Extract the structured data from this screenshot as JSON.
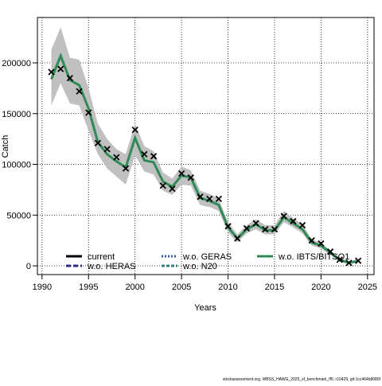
{
  "chart_data": {
    "type": "line",
    "xlabel": "Years",
    "ylabel": "Catch",
    "footer": "stockassessment.org, WBSS_HAWG_2025_sf_benchmark_ff5, r10429, git:1cc464b8086f",
    "x": [
      1991,
      1992,
      1993,
      1994,
      1995,
      1996,
      1997,
      1998,
      1999,
      2000,
      2001,
      2002,
      2003,
      2004,
      2005,
      2006,
      2007,
      2008,
      2009,
      2010,
      2011,
      2012,
      2013,
      2014,
      2015,
      2016,
      2017,
      2018,
      2019,
      2020,
      2021,
      2022,
      2023,
      2024
    ],
    "xlim": [
      1989.5,
      2025.7
    ],
    "xticks": [
      1990,
      1995,
      2000,
      2005,
      2010,
      2015,
      2020,
      2025
    ],
    "ylim": [
      -8600,
      244700
    ],
    "yticks": [
      0,
      50000,
      100000,
      150000,
      200000
    ],
    "grid": true,
    "legend": "bottom",
    "band": {
      "color": "#c0c0c0",
      "low": [
        158000,
        180000,
        160000,
        158000,
        133000,
        110000,
        96000,
        88000,
        80000,
        109000,
        93000,
        90000,
        74000,
        70000,
        80000,
        79000,
        60000,
        58000,
        54000,
        33000,
        23000,
        32000,
        36000,
        31000,
        31000,
        43000,
        38000,
        32000,
        20000,
        17000,
        11000,
        4000,
        2000,
        3000
      ],
      "high": [
        213000,
        235000,
        205000,
        203000,
        175000,
        140000,
        125000,
        115000,
        110000,
        140000,
        118000,
        113000,
        92000,
        86000,
        98000,
        94000,
        74000,
        71000,
        66000,
        43000,
        31000,
        40000,
        46000,
        40000,
        40000,
        54000,
        47000,
        41000,
        26000,
        23000,
        15000,
        8000,
        4000,
        6000
      ]
    },
    "series": [
      {
        "name": "current",
        "color": "#000000",
        "dash": "none",
        "values": [
          184000,
          207000,
          183000,
          178000,
          155000,
          122000,
          110000,
          103000,
          97000,
          126000,
          104000,
          102000,
          83000,
          78000,
          89000,
          87000,
          67000,
          64000,
          60000,
          38000,
          27000,
          36000,
          41000,
          35000,
          35000,
          48000,
          42000,
          36000,
          23000,
          20000,
          13000,
          6000,
          3000,
          5000
        ]
      },
      {
        "name": "w.o. HERAS",
        "color": "#2a2a7a",
        "dash": "6 3",
        "values": [
          184000,
          207000,
          183000,
          178000,
          155000,
          122000,
          110000,
          103000,
          97000,
          126000,
          104000,
          102000,
          83000,
          78000,
          89000,
          87000,
          67000,
          64000,
          60000,
          38000,
          27000,
          36000,
          41000,
          35000,
          35000,
          48000,
          42000,
          36000,
          23000,
          20000,
          13000,
          6000,
          3000,
          5000
        ]
      },
      {
        "name": "w.o. GERAS",
        "color": "#2f5f9f",
        "dash": "2 2",
        "values": [
          184000,
          207000,
          183000,
          178000,
          155000,
          122000,
          110000,
          103000,
          97000,
          126000,
          104000,
          102000,
          83000,
          78000,
          89000,
          87000,
          67000,
          64000,
          60000,
          38000,
          27000,
          36000,
          41000,
          35000,
          35000,
          48000,
          42000,
          36000,
          23000,
          20000,
          13000,
          6000,
          3000,
          5000
        ]
      },
      {
        "name": "w.o. N20",
        "color": "#2f8080",
        "dash": "4 2",
        "values": [
          184000,
          207000,
          183000,
          178000,
          155000,
          122000,
          110000,
          103000,
          97000,
          126000,
          104000,
          102000,
          83000,
          78000,
          89000,
          87000,
          67000,
          64000,
          60000,
          38000,
          27000,
          36000,
          41000,
          35000,
          35000,
          48000,
          42000,
          36000,
          23000,
          20000,
          13000,
          6000,
          3000,
          5000
        ]
      },
      {
        "name": "w.o. IBTS/BITSQ1",
        "color": "#2e8b57",
        "dash": "none",
        "values": [
          184000,
          207000,
          183000,
          178000,
          155000,
          122000,
          110000,
          103000,
          97000,
          126000,
          104000,
          102000,
          83000,
          78000,
          89000,
          87000,
          67000,
          64000,
          60000,
          38000,
          27000,
          36000,
          41000,
          35000,
          35000,
          48000,
          42000,
          36000,
          23000,
          20000,
          13000,
          6000,
          3000,
          5000
        ]
      }
    ],
    "points": {
      "color": "#000000",
      "values": [
        191000,
        194000,
        185000,
        172000,
        151000,
        121000,
        115000,
        107000,
        96000,
        134000,
        110000,
        108000,
        79000,
        76000,
        91000,
        87000,
        68000,
        66000,
        66000,
        39000,
        27000,
        37000,
        42000,
        36000,
        36000,
        49000,
        44000,
        40000,
        25000,
        22000,
        14000,
        6000,
        3000,
        5000
      ]
    }
  }
}
